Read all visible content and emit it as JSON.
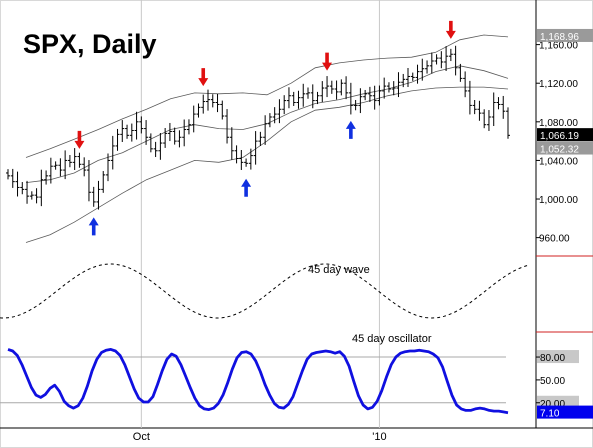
{
  "title": "SPX, Daily",
  "chart_data": [
    {
      "type": "ohlc",
      "panel": "price",
      "title": "SPX, Daily",
      "x_ticks": [
        "Oct",
        "'10"
      ],
      "y_ticks": [
        960,
        1000,
        1040,
        1080,
        1120,
        1160
      ],
      "y_tick_labels": [
        "960.00",
        "1,000.00",
        "1,040.00",
        "1,080.00",
        "1,120.00",
        "1,160.00"
      ],
      "ylim": [
        942,
        1200
      ],
      "price_labels": [
        {
          "text": "1,168.96",
          "value": 1168.96,
          "color": "#9a9a9a"
        },
        {
          "text": "1,066.19",
          "value": 1066.19,
          "color": "#000000"
        },
        {
          "text": "1,052.32",
          "value": 1052.32,
          "color": "#9a9a9a"
        }
      ],
      "close_path": [
        1024,
        1018,
        1012,
        1010,
        1003,
        1004,
        1002,
        1020,
        1024,
        1034,
        1035,
        1030,
        1040,
        1038,
        1044,
        1036,
        1030,
        1007,
        997,
        1010,
        1025,
        1040,
        1055,
        1067,
        1073,
        1066,
        1071,
        1080,
        1073,
        1064,
        1052,
        1050,
        1058,
        1068,
        1070,
        1060,
        1064,
        1072,
        1077,
        1088,
        1095,
        1101,
        1103,
        1100,
        1098,
        1086,
        1064,
        1050,
        1042,
        1038,
        1037,
        1045,
        1060,
        1064,
        1078,
        1085,
        1088,
        1093,
        1102,
        1107,
        1100,
        1105,
        1109,
        1110,
        1102,
        1107,
        1115,
        1117,
        1114,
        1111,
        1120,
        1110,
        1097,
        1097,
        1106,
        1109,
        1107,
        1102,
        1112,
        1117,
        1114,
        1115,
        1121,
        1124,
        1127,
        1126,
        1132,
        1135,
        1138,
        1143,
        1146,
        1142,
        1148,
        1150,
        1136,
        1125,
        1112,
        1097,
        1093,
        1089,
        1077,
        1085,
        1100,
        1098,
        1091,
        1066
      ],
      "upper_band": [
        1043,
        1052,
        1062,
        1072,
        1083,
        1093,
        1104,
        1110,
        1109,
        1110,
        1108,
        1120,
        1136,
        1141,
        1144,
        1146,
        1147,
        1152,
        1165,
        1170,
        1168
      ],
      "middle_line": [
        1017,
        1020,
        1027,
        1040,
        1048,
        1060,
        1072,
        1077,
        1073,
        1072,
        1078,
        1090,
        1099,
        1103,
        1109,
        1114,
        1121,
        1132,
        1138,
        1133,
        1125
      ],
      "lower_band": [
        955,
        963,
        976,
        991,
        1006,
        1020,
        1030,
        1040,
        1038,
        1043,
        1060,
        1080,
        1092,
        1095,
        1100,
        1107,
        1112,
        1115,
        1116,
        1116,
        1114
      ],
      "markers": [
        {
          "type": "down",
          "color": "red",
          "bar": 15
        },
        {
          "type": "down",
          "color": "red",
          "bar": 41
        },
        {
          "type": "down",
          "color": "red",
          "bar": 67
        },
        {
          "type": "down",
          "color": "red",
          "bar": 93
        },
        {
          "type": "up",
          "color": "blue",
          "bar": 18
        },
        {
          "type": "up",
          "color": "blue",
          "bar": 50
        },
        {
          "type": "up",
          "color": "blue",
          "bar": 72
        }
      ]
    },
    {
      "type": "line",
      "panel": "wave",
      "annotation": "45 day wave",
      "line_style": "dashed",
      "period_bars": 45,
      "cycle_start_bar": -1
    },
    {
      "type": "line",
      "panel": "oscillator",
      "annotation": "45 day oscillator",
      "y_ticks": [
        20,
        50,
        80
      ],
      "y_tick_labels": [
        "20.00",
        "50.00",
        "80.00"
      ],
      "ylim": [
        0,
        105
      ],
      "last_value_label": "7.10",
      "last_value": 7.1,
      "line_color": "#1010e0",
      "values": [
        90,
        88,
        82,
        70,
        55,
        40,
        30,
        27,
        31,
        39,
        43,
        35,
        22,
        16,
        13,
        16,
        26,
        42,
        62,
        77,
        86,
        89,
        90,
        88,
        82,
        70,
        54,
        38,
        26,
        21,
        21,
        28,
        44,
        62,
        77,
        84,
        81,
        70,
        55,
        40,
        26,
        16,
        12,
        11,
        13,
        19,
        30,
        46,
        64,
        79,
        86,
        87,
        84,
        75,
        61,
        44,
        30,
        19,
        14,
        13,
        18,
        28,
        45,
        62,
        77,
        84,
        86,
        87,
        88,
        87,
        85,
        87,
        81,
        68,
        48,
        29,
        17,
        12,
        14,
        22,
        36,
        54,
        70,
        80,
        85,
        87,
        88,
        88,
        89,
        88,
        87,
        84,
        79,
        67,
        48,
        30,
        17,
        12,
        10,
        10,
        12,
        13,
        12,
        10,
        9,
        9,
        8,
        7
      ]
    }
  ]
}
